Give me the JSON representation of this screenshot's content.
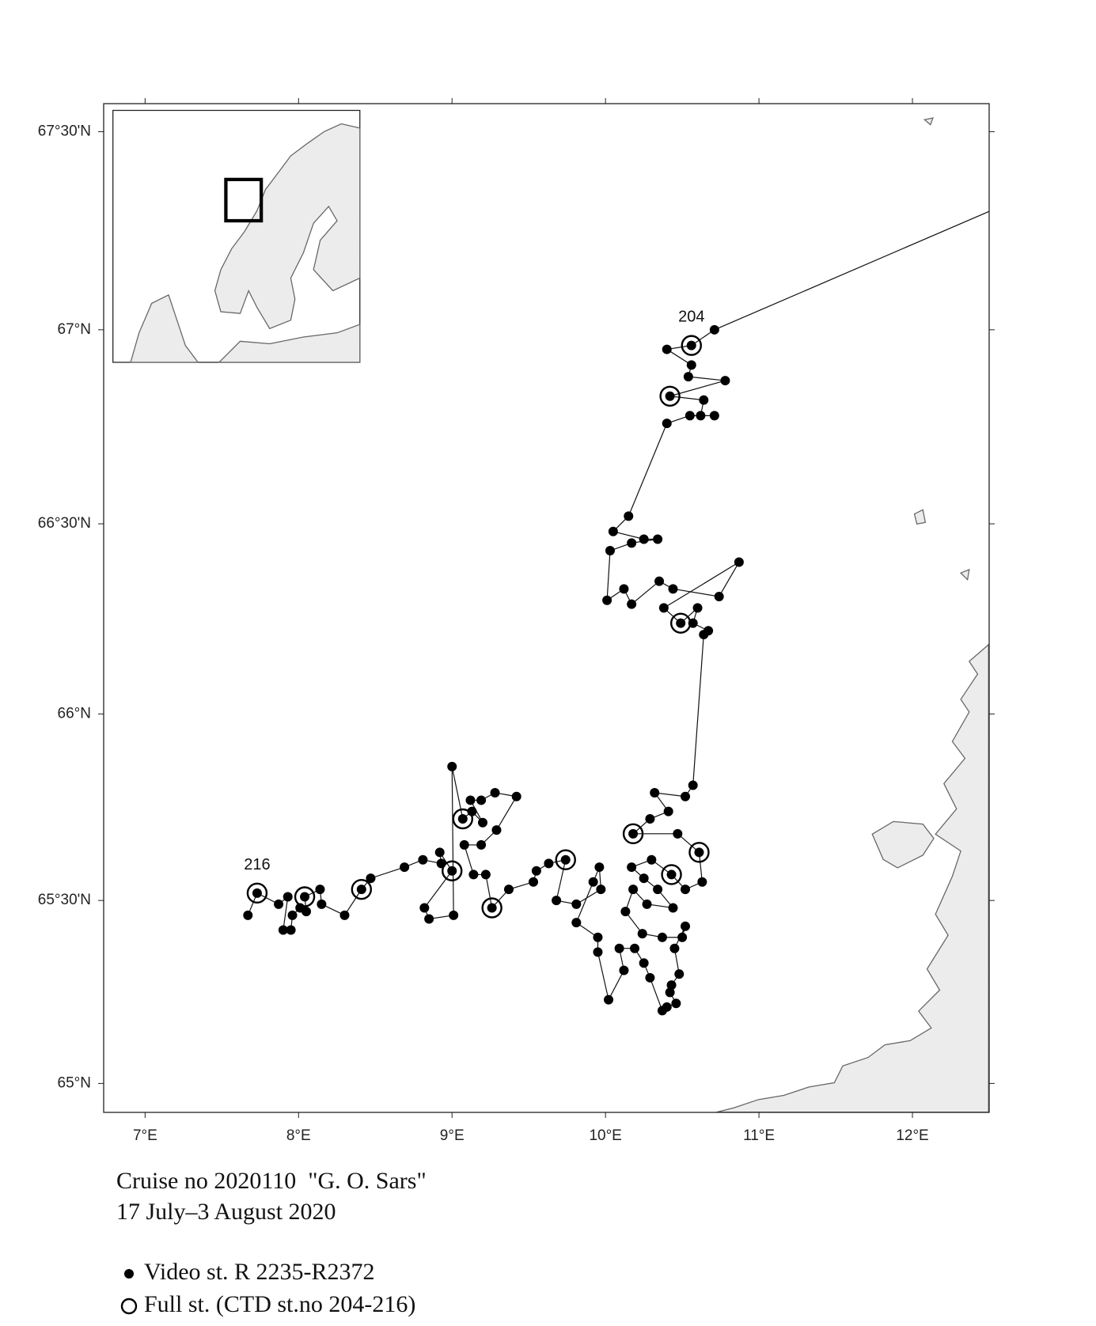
{
  "chart_data": {
    "type": "map",
    "xlim": [
      6.73,
      12.5
    ],
    "ylim": [
      64.92,
      67.57
    ],
    "xticks": [
      {
        "value": 7,
        "label": "7°E"
      },
      {
        "value": 8,
        "label": "8°E"
      },
      {
        "value": 9,
        "label": "9°E"
      },
      {
        "value": 10,
        "label": "10°E"
      },
      {
        "value": 11,
        "label": "11°E"
      },
      {
        "value": 12,
        "label": "12°E"
      }
    ],
    "yticks": [
      {
        "value": 65,
        "label": "65°N"
      },
      {
        "value": 65.5,
        "label": "65°30'N"
      },
      {
        "value": 66,
        "label": "66°N"
      },
      {
        "value": 66.5,
        "label": "66°30'N"
      },
      {
        "value": 67,
        "label": "67°N"
      },
      {
        "value": 67.5,
        "label": "67°30'N"
      }
    ],
    "track_entry": {
      "lon": 12.5,
      "lat": 67.3
    },
    "series": [
      {
        "name": "Video st. R 2235-R2372",
        "marker": "dot",
        "color": "#000000",
        "lon": [
          10.71,
          10.56,
          10.4,
          10.56,
          10.54,
          10.78,
          10.42,
          10.64,
          10.62,
          10.71,
          10.55,
          10.4,
          10.15,
          10.05,
          10.25,
          10.34,
          10.17,
          10.03,
          10.01,
          10.12,
          10.17,
          10.35,
          10.44,
          10.74,
          10.87,
          10.38,
          10.49,
          10.6,
          10.57,
          10.67,
          10.64,
          10.57,
          10.52,
          10.32,
          10.41,
          10.29,
          10.18,
          10.47,
          10.61,
          10.63,
          10.52,
          10.43,
          10.3,
          10.17,
          10.25,
          10.34,
          10.44,
          10.27,
          10.18,
          10.13,
          10.24,
          10.37,
          10.5,
          10.52,
          10.45,
          10.48,
          10.43,
          10.42,
          10.46,
          10.4,
          10.37,
          10.29,
          10.25,
          10.19,
          10.09,
          10.12,
          10.02,
          9.95,
          9.95,
          9.81,
          9.92,
          9.96,
          9.97,
          9.81,
          9.68,
          9.74,
          9.63,
          9.55,
          9.53,
          9.37,
          9.26,
          9.22,
          9.14,
          9.08,
          9.19,
          9.29,
          9.42,
          9.28,
          9.19,
          9.12,
          9.2,
          9.13,
          9.07,
          9.0,
          9.01,
          8.85,
          8.82,
          9.0,
          8.92,
          8.93,
          8.81,
          8.69,
          8.47,
          8.41,
          8.3,
          8.15,
          8.14,
          8.04,
          8.05,
          8.01,
          7.96,
          7.95,
          7.9,
          7.93,
          7.87,
          7.73,
          7.67
        ],
        "lat": [
          67.0,
          66.96,
          66.95,
          66.91,
          66.88,
          66.87,
          66.83,
          66.82,
          66.78,
          66.78,
          66.78,
          66.76,
          66.52,
          66.48,
          66.46,
          66.46,
          66.45,
          66.43,
          66.3,
          66.33,
          66.29,
          66.35,
          66.33,
          66.31,
          66.4,
          66.28,
          66.24,
          66.28,
          66.24,
          66.22,
          66.21,
          65.81,
          65.78,
          65.79,
          65.74,
          65.72,
          65.68,
          65.68,
          65.63,
          65.55,
          65.53,
          65.57,
          65.61,
          65.59,
          65.56,
          65.53,
          65.48,
          65.49,
          65.53,
          65.47,
          65.41,
          65.4,
          65.4,
          65.43,
          65.37,
          65.3,
          65.27,
          65.25,
          65.22,
          65.21,
          65.2,
          65.29,
          65.33,
          65.37,
          65.37,
          65.31,
          65.23,
          65.36,
          65.4,
          65.44,
          65.55,
          65.59,
          65.53,
          65.49,
          65.5,
          65.61,
          65.6,
          65.58,
          65.55,
          65.53,
          65.48,
          65.57,
          65.57,
          65.65,
          65.65,
          65.69,
          65.78,
          65.79,
          65.77,
          65.77,
          65.71,
          65.74,
          65.72,
          65.86,
          65.46,
          65.45,
          65.48,
          65.58,
          65.63,
          65.6,
          65.61,
          65.59,
          65.56,
          65.53,
          65.46,
          65.49,
          65.53,
          65.51,
          65.47,
          65.48,
          65.46,
          65.42,
          65.42,
          65.51,
          65.49,
          65.52,
          65.46
        ]
      },
      {
        "name": "Full st. (CTD st.no 204-216)",
        "marker": "ring",
        "color": "#000000",
        "lon": [
          10.56,
          10.42,
          10.49,
          10.18,
          10.61,
          10.43,
          9.74,
          9.26,
          9.07,
          9.0,
          8.41,
          8.04,
          7.73
        ],
        "lat": [
          66.96,
          66.83,
          66.24,
          65.68,
          65.63,
          65.57,
          65.61,
          65.48,
          65.72,
          65.58,
          65.53,
          65.51,
          65.52
        ]
      }
    ],
    "annotations": [
      {
        "text": "204",
        "lon": 10.56,
        "lat": 66.96
      },
      {
        "text": "216",
        "lon": 7.73,
        "lat": 65.52
      }
    ],
    "caption": [
      "Cruise no 2020110  \"G. O. Sars\"",
      "17 July–3 August 2020"
    ]
  }
}
